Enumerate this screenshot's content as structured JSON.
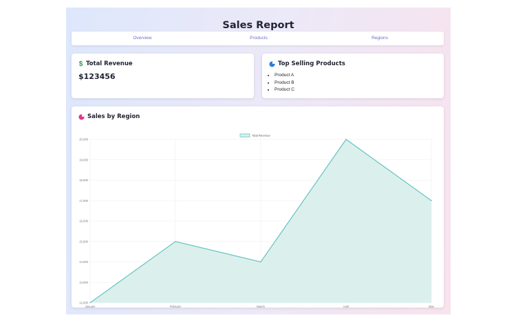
{
  "page": {
    "title": "Sales Report"
  },
  "nav": {
    "items": [
      {
        "label": "Overview"
      },
      {
        "label": "Products"
      },
      {
        "label": "Regions"
      }
    ]
  },
  "total_revenue": {
    "title": "Total Revenue",
    "icon": "dollar-icon",
    "value": "$123456"
  },
  "top_products": {
    "title": "Top Selling Products",
    "icon": "pie-chart-icon",
    "items": [
      "Product A",
      "Product B",
      "Product C"
    ]
  },
  "sales_by_region": {
    "title": "Sales by Region",
    "icon": "pie-chart-icon"
  },
  "colors": {
    "nav_link": "#6b6ec9",
    "line": "#6cc5c5",
    "fill": "#d9efec",
    "revenue_icon": "#2e9e5b",
    "products_icon": "#2f7fd6",
    "region_icon": "#e6358a"
  },
  "chart_data": {
    "type": "area",
    "categories": [
      "January",
      "February",
      "March",
      "April",
      "May"
    ],
    "series": [
      {
        "name": "Total Revenue",
        "values": [
          12000,
          15000,
          14000,
          20000,
          17000
        ]
      }
    ],
    "ylim": [
      12000,
      20000
    ],
    "yticks": [
      "12,000",
      "13,000",
      "14,000",
      "15,000",
      "16,000",
      "17,000",
      "18,000",
      "19,000",
      "20,000"
    ],
    "grid": true,
    "legend": "top-center"
  }
}
